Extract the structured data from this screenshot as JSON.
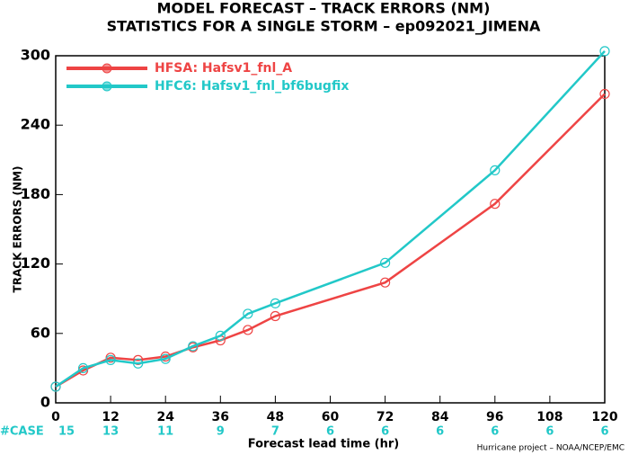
{
  "chart_data": {
    "type": "line",
    "title": "MODEL FORECAST – TRACK ERRORS (NM)",
    "subtitle": "STATISTICS FOR A SINGLE STORM – ep092021_JIMENA",
    "x_label": "Forecast lead time (hr)",
    "y_label": "TRACK ERRORS (NM)",
    "credit": "Hurricane project – NOAA/NCEP/EMC",
    "x": [
      0,
      6,
      12,
      18,
      24,
      30,
      36,
      42,
      48,
      72,
      96,
      120
    ],
    "series": [
      {
        "name": "HFSA: Hafsv1_fnl_A",
        "color": "#ee4444",
        "values": [
          14,
          28,
          39,
          37,
          40,
          48,
          54,
          63,
          75,
          104,
          172,
          267
        ]
      },
      {
        "name": "HFC6: Hafsv1_fnl_bf6bugfix",
        "color": "#22c8c8",
        "values": [
          14,
          30,
          37,
          34,
          38,
          49,
          58,
          77,
          86,
          121,
          201,
          304
        ]
      }
    ],
    "xlim": [
      0,
      120
    ],
    "xticks": [
      0,
      12,
      24,
      36,
      48,
      60,
      72,
      84,
      96,
      108,
      120
    ],
    "ylim": [
      0,
      300
    ],
    "yticks": [
      0,
      60,
      120,
      180,
      240,
      300
    ],
    "grid": false,
    "legend": "upper left",
    "case_counts": {
      "label": "#CASE",
      "values": [
        15,
        13,
        11,
        9,
        7,
        6,
        6,
        6,
        6,
        6,
        6
      ]
    }
  }
}
